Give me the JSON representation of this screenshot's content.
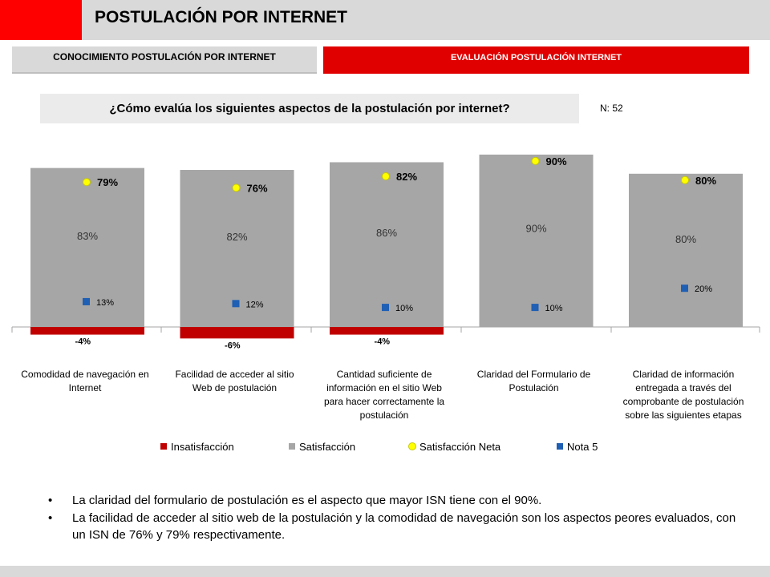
{
  "header": {
    "title": "POSTULACIÓN POR INTERNET"
  },
  "tabs": [
    {
      "label": "CONOCIMIENTO POSTULACIÓN POR INTERNET"
    },
    {
      "label": "EVALUACIÓN POSTULACIÓN INTERNET"
    }
  ],
  "question": "¿Cómo evalúa los siguientes aspectos de la postulación por internet?",
  "sample": "N: 52",
  "chart_data": {
    "type": "bar",
    "categories": [
      [
        "Comodidad de navegación en",
        "Internet"
      ],
      [
        "Facilidad de acceder al sitio",
        "Web de postulación"
      ],
      [
        "Cantidad suficiente de",
        "información en el sitio Web",
        "para hacer correctamente la",
        "postulación"
      ],
      [
        "Claridad del Formulario de",
        "Postulación"
      ],
      [
        "Claridad de información",
        "entregada a través del",
        "comprobante de postulación",
        "sobre las siguientes etapas"
      ]
    ],
    "series": [
      {
        "name": "Insatisfacción",
        "values": [
          -4,
          -6,
          -4,
          0,
          0
        ],
        "labels": [
          "-4%",
          "-6%",
          "-4%",
          "",
          ""
        ]
      },
      {
        "name": "Satisfacción",
        "values": [
          83,
          82,
          86,
          90,
          80
        ],
        "labels": [
          "83%",
          "82%",
          "86%",
          "90%",
          "80%"
        ]
      },
      {
        "name": "Satisfacción Neta",
        "values": [
          79,
          76,
          82,
          90,
          80
        ],
        "labels": [
          "79%",
          "76%",
          "82%",
          "90%",
          "80%"
        ]
      },
      {
        "name": "Nota 5",
        "values": [
          13,
          12,
          10,
          10,
          20
        ],
        "labels": [
          "13%",
          "12%",
          "10%",
          "10%",
          "20%"
        ]
      }
    ],
    "colors": {
      "Insatisfacción": "#c00000",
      "Satisfacción": "#a6a6a6",
      "Satisfacción Neta": "#ffff00",
      "Nota 5": "#1f5fb4"
    },
    "legend": "bottom"
  },
  "notes": [
    "La claridad del formulario de postulación es el aspecto que mayor ISN tiene con el 90%.",
    "La facilidad de acceder al sitio web de la postulación y la comodidad de navegación son los aspectos peores evaluados, con un ISN de 76% y 79% respectivamente."
  ]
}
